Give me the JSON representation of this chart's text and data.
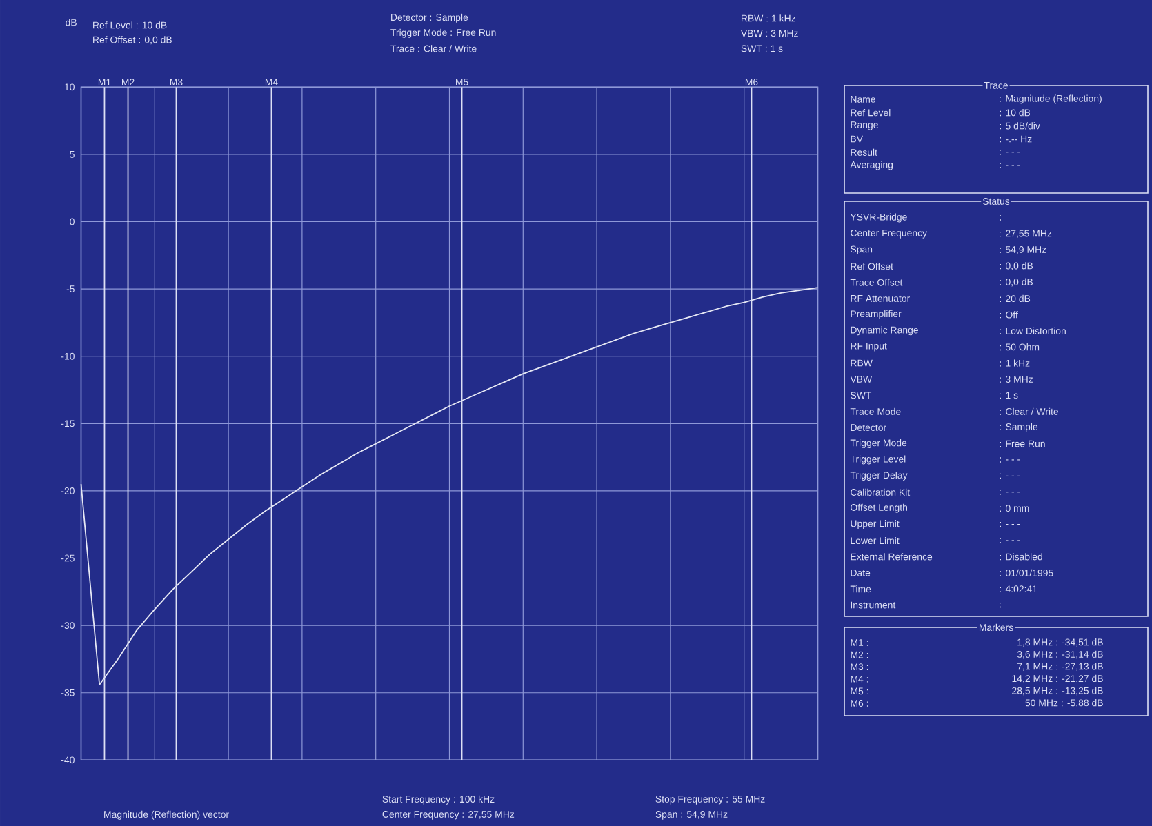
{
  "chart_data": [
    {
      "type": "line",
      "ylabel": "dB",
      "color": "#e6e8f4",
      "marker": "none",
      "line_style": "solid",
      "grid": true,
      "categories": [
        null,
        null,
        null,
        null,
        null,
        null,
        null,
        null,
        null,
        null,
        null,
        null,
        null,
        null,
        null,
        null,
        null,
        null,
        null,
        null,
        null,
        null,
        null,
        null,
        null,
        null,
        null,
        null,
        null,
        null,
        null,
        null,
        null,
        null,
        null,
        null,
        null,
        null,
        null,
        null,
        null
      ],
      "values": [
        -19.5,
        -34.4,
        -32.5,
        -30.4,
        -28.8,
        -27.3,
        -26.0,
        -24.7,
        -23.6,
        -22.5,
        -21.5,
        -20.6,
        -19.7,
        -18.8,
        -18.0,
        -17.2,
        -16.5,
        -15.8,
        -15.1,
        -14.4,
        -13.7,
        -13.1,
        -12.5,
        -11.9,
        -11.3,
        -10.8,
        -10.3,
        -9.8,
        -9.3,
        -8.8,
        -8.3,
        -7.9,
        -7.5,
        -7.1,
        -6.7,
        -6.3,
        -6.0,
        -5.6,
        -5.3,
        -5.1,
        -4.9
      ],
      "ylim": [
        -40,
        10
      ],
      "yticks": [
        10,
        5,
        0,
        -5,
        -10,
        -15,
        -20,
        -25,
        -30,
        -35,
        -40
      ],
      "annotations": [
        "Ref Level : 10 dB",
        "Ref Offset : 0,0 dB",
        "Detector : Sample",
        "Trigger Mode : Free Run",
        "Trace : Clear / Write",
        "RBW : 1 kHz",
        "VBW : 3 MHz",
        "SWT : 1 s",
        "Magnitude (Reflection) vector",
        "Start Frequency : 100 kHz",
        "Center Frequency : 27,55 MHz",
        "Stop Frequency : 55 MHz",
        "Span : 54,9 MHz",
        "M1",
        "M2",
        "M3",
        "M4",
        "M5",
        "M6"
      ]
    },
    {
      "type": "other",
      "title": "Trace",
      "annotations": [
        "Name",
        ": Magnitude (Reflection)",
        "Ref Level",
        ": 10 dB",
        "Range",
        ": 5 dB/div",
        "BV",
        ": -.-- Hz",
        "Result",
        ": - - -",
        "Averaging",
        ": - - -"
      ]
    },
    {
      "type": "other",
      "title": "Status",
      "annotations": [
        "YSVR-Bridge",
        ":",
        "Center Frequency",
        ": 27,55 MHz",
        "Span",
        ": 54,9 MHz",
        "Ref Offset",
        ": 0,0 dB",
        "Trace Offset",
        ": 0,0 dB",
        "RF Attenuator",
        ": 20 dB",
        "Preamplifier",
        ": Off",
        "Dynamic Range",
        ": Low Distortion",
        "RF Input",
        ": 50 Ohm",
        "RBW",
        ": 1 kHz",
        "VBW",
        ": 3 MHz",
        "SWT",
        ": 1 s",
        "Trace Mode",
        ": Clear / Write",
        "Detector",
        ": Sample",
        "Trigger Mode",
        ": Free Run",
        "Trigger Level",
        ": - - -",
        "Trigger Delay",
        ": - - -",
        "Calibration Kit",
        ": - - -",
        "Offset Length",
        ": 0 mm",
        "Upper Limit",
        ": - - -",
        "Lower Limit",
        ": - - -",
        "External Reference",
        ": Disabled",
        "Date",
        ": 01/01/1995",
        "Time",
        ": 4:02:41",
        "Instrument",
        ":"
      ]
    },
    {
      "type": "other",
      "title": "Markers",
      "annotations": [
        "M1 :",
        "1,8 MHz : -34,51 dB",
        "M2 :",
        "3,6 MHz : -31,14 dB",
        "M3 :",
        "7,1 MHz : -27,13 dB",
        "M4 :",
        "14,2 MHz : -21,27 dB",
        "M5 :",
        "28,5 MHz : -13,25 dB",
        "M6 :",
        "50 MHz : -5,88 dB"
      ]
    }
  ]
}
